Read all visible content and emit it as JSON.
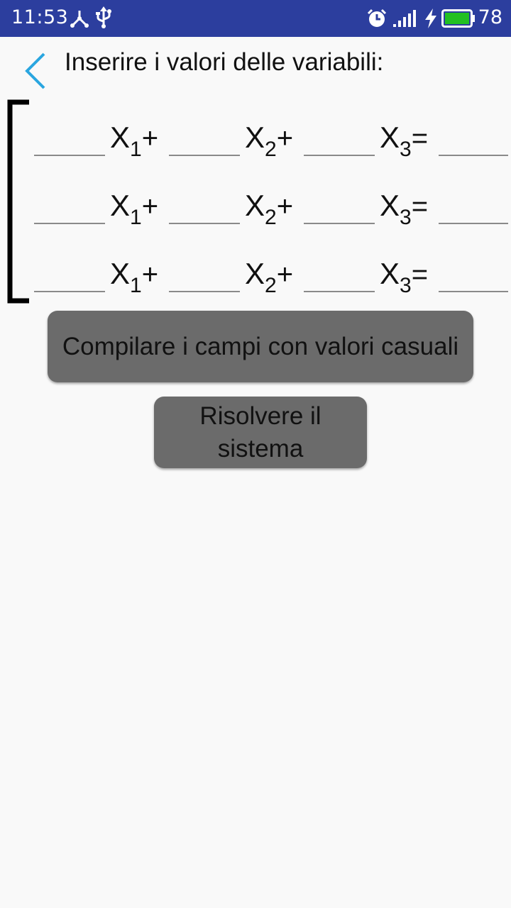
{
  "status_bar": {
    "time": "11:53",
    "battery_level": "78",
    "battery_color": "#22c022",
    "icons": [
      "share-icon",
      "usb-icon",
      "alarm-icon",
      "signal-icon",
      "charging-bolt-icon",
      "battery-icon"
    ]
  },
  "header": {
    "title": "Inserire i valori delle variabili:",
    "back_icon": "chevron-left-icon",
    "accent": "#2aa6e0"
  },
  "equations": [
    {
      "terms": [
        {
          "var": "X",
          "sub": "1",
          "op": "+"
        },
        {
          "var": "X",
          "sub": "2",
          "op": "+"
        },
        {
          "var": "X",
          "sub": "3",
          "op": "="
        }
      ],
      "values": [
        "",
        "",
        "",
        ""
      ]
    },
    {
      "terms": [
        {
          "var": "X",
          "sub": "1",
          "op": "+"
        },
        {
          "var": "X",
          "sub": "2",
          "op": "+"
        },
        {
          "var": "X",
          "sub": "3",
          "op": "="
        }
      ],
      "values": [
        "",
        "",
        "",
        ""
      ]
    },
    {
      "terms": [
        {
          "var": "X",
          "sub": "1",
          "op": "+"
        },
        {
          "var": "X",
          "sub": "2",
          "op": "+"
        },
        {
          "var": "X",
          "sub": "3",
          "op": "="
        }
      ],
      "values": [
        "",
        "",
        "",
        ""
      ]
    }
  ],
  "buttons": {
    "random_fill": "Compilare i campi con valori casuali",
    "solve": "Risolvere il sistema"
  }
}
